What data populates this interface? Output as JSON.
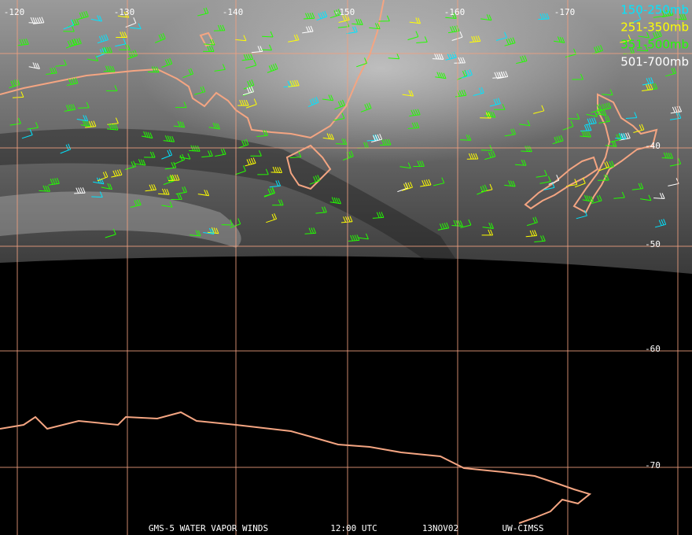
{
  "map": {
    "longitude_labels": [
      "-120",
      "-130",
      "-140",
      "-150",
      "-160",
      "-170"
    ],
    "latitude_labels": [
      "-40",
      "-50",
      "-60",
      "-70"
    ],
    "legend": [
      {
        "label": "150-250mb",
        "color": "#00e5ff"
      },
      {
        "label": "251-350mb",
        "color": "#ffff00"
      },
      {
        "label": "351-500mb",
        "color": "#22ff00"
      },
      {
        "label": "501-700mb",
        "color": "#ffffff"
      }
    ],
    "footer": [
      "GMS-5 WATER VAPOR WINDS",
      "12:00 UTC",
      "13NOV02",
      "UW-CIMSS"
    ]
  }
}
